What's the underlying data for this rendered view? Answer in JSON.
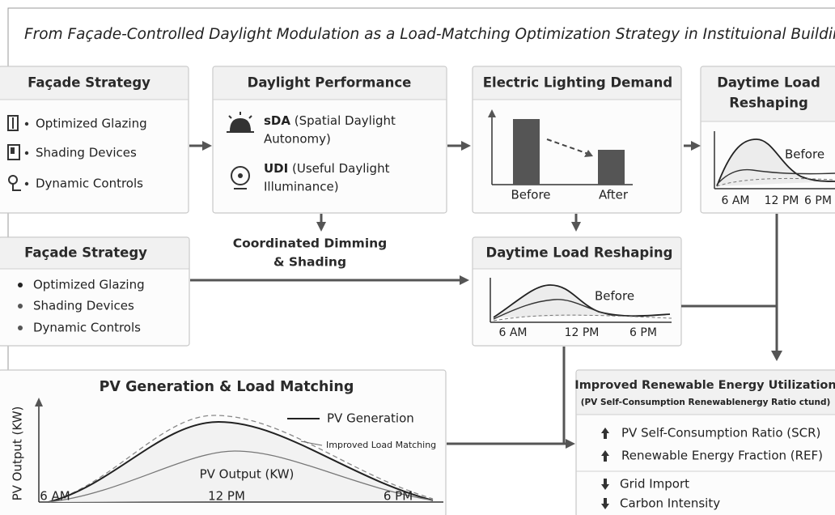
{
  "title": "From Façade-Controlled Daylight Modulation as a Load-Matching Optimization Strategy in Instituional Buildings",
  "facade_strategy_top": {
    "title": "Façade Strategy",
    "items": [
      "Optimized Glazing",
      "Shading Devices",
      "Dynamic Controls"
    ]
  },
  "daylight_performance": {
    "title": "Daylight Performance",
    "items": [
      {
        "label": "sDA",
        "line1": "(Spatial Daylight",
        "line2": "Autonomy)"
      },
      {
        "label": "UDI",
        "line1": "(Useful Daylight",
        "line2": "Illuminance)"
      }
    ]
  },
  "electric_lighting_demand": {
    "title": "Electric Lighting Demand",
    "labels": [
      "Before",
      "After"
    ]
  },
  "daytime_load_reshaping_top": {
    "title_lines": [
      "Daytime Load",
      "Reshaping"
    ],
    "curve_label": "Before",
    "ticks": [
      "6 AM",
      "12 PM",
      "6 PM"
    ]
  },
  "coordination": {
    "lines": [
      "Coordinated Dimming",
      "& Shading"
    ]
  },
  "facade_strategy_mid": {
    "title": "Façade Strategy",
    "items": [
      "Optimized Glazing",
      "Shading Devices",
      "Dynamic Controls"
    ]
  },
  "daytime_load_reshaping_mid": {
    "title": "Daytime Load Reshaping",
    "curve_label": "Before",
    "ticks": [
      "6 AM",
      "12 PM",
      "6 PM"
    ]
  },
  "pv_generation": {
    "title": "PV Generation & Load Matching",
    "y_axis": "PV Output (KW)",
    "legend": [
      "PV Generation",
      "Improved Load Matching"
    ],
    "inner_label": "PV Output (KW)",
    "ticks": [
      "6 AM",
      "12 PM",
      "6 PM"
    ]
  },
  "renewable_utilization": {
    "title": "Improved Renewable Energy Utilization",
    "subtitle": "(PV Self-Consumption Renewablenergy Ratio ctund)",
    "increases": [
      "PV Self-Consumption Ratio (SCR)",
      "Renewable Energy Fraction (REF)"
    ],
    "decreases": [
      "Grid Import",
      "Carbon Intensity"
    ]
  }
}
